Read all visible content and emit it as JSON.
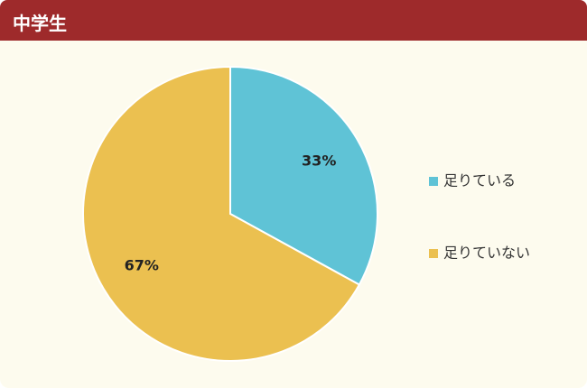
{
  "header": {
    "title": "中学生"
  },
  "chart_data": {
    "type": "pie",
    "categories": [
      "足りている",
      "足りていない"
    ],
    "values": [
      33,
      67
    ],
    "value_labels": [
      "33%",
      "67%"
    ],
    "colors": [
      "#5fc3d6",
      "#ebc050"
    ]
  }
}
